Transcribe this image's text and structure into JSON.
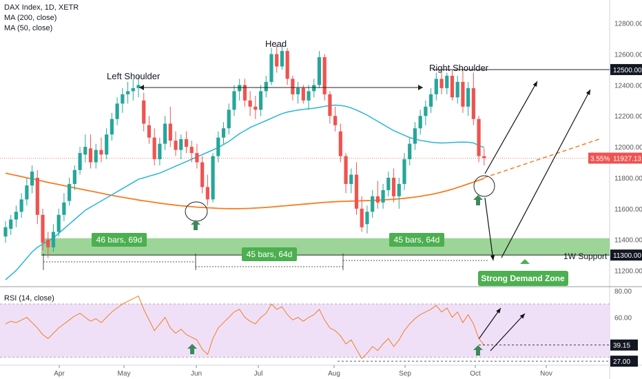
{
  "legend": {
    "symbol": "DAX Index, 1D, XETR",
    "ma200": "MA (200, close)",
    "ma50": "MA (50, close)",
    "rsi": "RSI (14, close)"
  },
  "colors": {
    "up": "#26a69a",
    "down": "#ef5350",
    "ma50": "#26b5d6",
    "ma200": "#f57c1f",
    "zone": "#7cc576",
    "rsi": "#f57c1f",
    "rsi_band": "#ead6f5",
    "label_bg": "#4caf50"
  },
  "annotations": {
    "left_shoulder": "Left Shoulder",
    "head": "Head",
    "right_shoulder": "Right Shoulder",
    "support": "1W Support",
    "demand_zone": "Strong Demand Zone",
    "bars1": "46 bars, 69d",
    "bars2": "45 bars, 64d",
    "bars3": "45 bars, 64d"
  },
  "price_badges": {
    "current": "11927.13",
    "change": "3.55%",
    "resistance": "12500.00",
    "support": "11300.00",
    "rsi_current": "39.15",
    "rsi_low": "27.00"
  },
  "chart_data": {
    "type": "candlestick",
    "x_ticks": [
      "Apr",
      "May",
      "Jun",
      "Jul",
      "Aug",
      "Sep",
      "Oct",
      "Nov"
    ],
    "y_ticks": [
      11200,
      11400,
      11600,
      11800,
      12000,
      12200,
      12400,
      12600,
      12800
    ],
    "ylim": [
      11100,
      12950
    ],
    "rsi_ticks": [
      40,
      60,
      80
    ],
    "rsi_ylim": [
      25,
      82
    ],
    "rsi_band": [
      30,
      70
    ],
    "series": {
      "candles": [
        [
          11420,
          11520,
          11380,
          11480
        ],
        [
          11470,
          11560,
          11430,
          11530
        ],
        [
          11530,
          11620,
          11480,
          11580
        ],
        [
          11580,
          11700,
          11540,
          11660
        ],
        [
          11660,
          11800,
          11620,
          11750
        ],
        [
          11750,
          11880,
          11700,
          11840
        ],
        [
          11800,
          11850,
          11500,
          11560
        ],
        [
          11560,
          11600,
          11330,
          11380
        ],
        [
          11400,
          11450,
          11280,
          11350
        ],
        [
          11350,
          11500,
          11320,
          11450
        ],
        [
          11450,
          11600,
          11420,
          11560
        ],
        [
          11560,
          11700,
          11520,
          11640
        ],
        [
          11650,
          11800,
          11620,
          11760
        ],
        [
          11760,
          11880,
          11720,
          11850
        ],
        [
          11850,
          12000,
          11820,
          11960
        ],
        [
          11950,
          12080,
          11900,
          12000
        ],
        [
          11990,
          12080,
          11860,
          11900
        ],
        [
          11900,
          12020,
          11860,
          11980
        ],
        [
          11980,
          12060,
          11900,
          11950
        ],
        [
          11950,
          12120,
          11920,
          12080
        ],
        [
          12080,
          12220,
          12040,
          12180
        ],
        [
          12180,
          12320,
          12140,
          12280
        ],
        [
          12280,
          12380,
          12220,
          12340
        ],
        [
          12340,
          12420,
          12280,
          12360
        ],
        [
          12360,
          12440,
          12300,
          12380
        ],
        [
          12380,
          12460,
          12320,
          12400
        ],
        [
          12300,
          12350,
          12100,
          12150
        ],
        [
          12140,
          12200,
          12020,
          12060
        ],
        [
          12060,
          12120,
          11880,
          11920
        ],
        [
          11920,
          12060,
          11880,
          12020
        ],
        [
          12020,
          12200,
          11980,
          12150
        ],
        [
          12150,
          12260,
          12000,
          12040
        ],
        [
          12040,
          12100,
          11940,
          11980
        ],
        [
          11980,
          12080,
          11920,
          12050
        ],
        [
          12050,
          12100,
          11960,
          12000
        ],
        [
          12000,
          12040,
          11900,
          11960
        ],
        [
          11960,
          12020,
          11860,
          11900
        ],
        [
          11900,
          11940,
          11700,
          11740
        ],
        [
          11740,
          11820,
          11620,
          11660
        ],
        [
          11660,
          11960,
          11640,
          11940
        ],
        [
          11940,
          12100,
          11900,
          12060
        ],
        [
          12060,
          12160,
          12020,
          12120
        ],
        [
          12120,
          12280,
          12080,
          12240
        ],
        [
          12240,
          12400,
          12200,
          12360
        ],
        [
          12360,
          12440,
          12300,
          12400
        ],
        [
          12400,
          12440,
          12260,
          12300
        ],
        [
          12300,
          12360,
          12200,
          12260
        ],
        [
          12260,
          12330,
          12180,
          12240
        ],
        [
          12240,
          12400,
          12200,
          12360
        ],
        [
          12360,
          12460,
          12320,
          12420
        ],
        [
          12420,
          12640,
          12400,
          12600
        ],
        [
          12600,
          12660,
          12480,
          12520
        ],
        [
          12520,
          12660,
          12500,
          12620
        ],
        [
          12620,
          12640,
          12400,
          12440
        ],
        [
          12440,
          12460,
          12300,
          12340
        ],
        [
          12340,
          12420,
          12280,
          12380
        ],
        [
          12380,
          12400,
          12280,
          12300
        ],
        [
          12300,
          12400,
          12240,
          12360
        ],
        [
          12360,
          12440,
          12320,
          12400
        ],
        [
          12400,
          12620,
          12380,
          12580
        ],
        [
          12580,
          12600,
          12300,
          12340
        ],
        [
          12340,
          12360,
          12150,
          12200
        ],
        [
          12200,
          12260,
          12100,
          12140
        ],
        [
          12100,
          12150,
          11900,
          11940
        ],
        [
          11940,
          11960,
          11700,
          11760
        ],
        [
          11760,
          11860,
          11700,
          11820
        ],
        [
          11820,
          11900,
          11560,
          11600
        ],
        [
          11600,
          11680,
          11450,
          11480
        ],
        [
          11500,
          11620,
          11440,
          11580
        ],
        [
          11580,
          11720,
          11540,
          11680
        ],
        [
          11680,
          11780,
          11600,
          11640
        ],
        [
          11640,
          11760,
          11600,
          11720
        ],
        [
          11720,
          11840,
          11680,
          11800
        ],
        [
          11800,
          11860,
          11640,
          11680
        ],
        [
          11680,
          11800,
          11600,
          11760
        ],
        [
          11760,
          11960,
          11720,
          11920
        ],
        [
          11920,
          12060,
          11880,
          12020
        ],
        [
          12020,
          12160,
          11980,
          12120
        ],
        [
          12120,
          12240,
          12080,
          12200
        ],
        [
          12200,
          12300,
          12140,
          12260
        ],
        [
          12260,
          12380,
          12220,
          12340
        ],
        [
          12340,
          12480,
          12300,
          12440
        ],
        [
          12440,
          12500,
          12340,
          12380
        ],
        [
          12380,
          12480,
          12340,
          12460
        ],
        [
          12460,
          12500,
          12300,
          12320
        ],
        [
          12320,
          12460,
          12280,
          12420
        ],
        [
          12420,
          12500,
          12220,
          12260
        ],
        [
          12260,
          12420,
          12200,
          12380
        ],
        [
          12380,
          12480,
          12140,
          12180
        ],
        [
          12180,
          12200,
          11900,
          11940
        ],
        [
          11940,
          11990,
          11880,
          11927
        ]
      ],
      "ma50": [
        11140,
        11170,
        11200,
        11240,
        11280,
        11320,
        11350,
        11370,
        11390,
        11410,
        11440,
        11470,
        11500,
        11530,
        11560,
        11590,
        11610,
        11630,
        11650,
        11670,
        11690,
        11710,
        11730,
        11750,
        11770,
        11790,
        11800,
        11810,
        11820,
        11830,
        11845,
        11860,
        11875,
        11890,
        11905,
        11920,
        11935,
        11950,
        11965,
        11980,
        11995,
        12015,
        12035,
        12060,
        12085,
        12105,
        12125,
        12140,
        12155,
        12170,
        12185,
        12200,
        12215,
        12225,
        12232,
        12238,
        12242,
        12246,
        12250,
        12255,
        12262,
        12268,
        12270,
        12268,
        12262,
        12252,
        12238,
        12222,
        12205,
        12185,
        12165,
        12145,
        12125,
        12105,
        12090,
        12075,
        12060,
        12050,
        12042,
        12036,
        12030,
        12027,
        12025,
        12026,
        12028,
        12030,
        12031,
        12030,
        12025,
        12010,
        11995
      ],
      "ma200": [
        11830,
        11822,
        11815,
        11808,
        11800,
        11793,
        11786,
        11778,
        11770,
        11763,
        11756,
        11749,
        11742,
        11735,
        11728,
        11721,
        11714,
        11707,
        11700,
        11693,
        11686,
        11680,
        11674,
        11668,
        11662,
        11656,
        11651,
        11646,
        11641,
        11636,
        11631,
        11627,
        11623,
        11619,
        11616,
        11613,
        11610,
        11608,
        11606,
        11604,
        11602,
        11601,
        11600,
        11600,
        11600,
        11601,
        11602,
        11604,
        11606,
        11608,
        11611,
        11614,
        11617,
        11620,
        11623,
        11626,
        11629,
        11632,
        11635,
        11638,
        11641,
        11643,
        11645,
        11647,
        11648,
        11649,
        11650,
        11651,
        11652,
        11653,
        11655,
        11657,
        11659,
        11661,
        11664,
        11667,
        11671,
        11675,
        11680,
        11686,
        11692,
        11699,
        11707,
        11716,
        11726,
        11737,
        11748,
        11760,
        11772,
        11784,
        11796
      ],
      "rsi": [
        55,
        57,
        56,
        58,
        60,
        56,
        52,
        47,
        44,
        48,
        52,
        55,
        58,
        61,
        63,
        60,
        57,
        59,
        56,
        60,
        64,
        67,
        70,
        72,
        74,
        76,
        66,
        58,
        50,
        55,
        60,
        52,
        48,
        51,
        47,
        45,
        43,
        36,
        32,
        44,
        52,
        56,
        60,
        64,
        66,
        60,
        57,
        55,
        60,
        63,
        70,
        66,
        68,
        62,
        58,
        60,
        57,
        60,
        62,
        66,
        58,
        52,
        50,
        46,
        40,
        43,
        36,
        29,
        33,
        38,
        35,
        40,
        44,
        38,
        43,
        50,
        55,
        59,
        62,
        64,
        66,
        69,
        64,
        67,
        60,
        64,
        56,
        62,
        55,
        44,
        39.15
      ],
      "projection": [
        [
          11800,
          12050
        ]
      ]
    }
  }
}
